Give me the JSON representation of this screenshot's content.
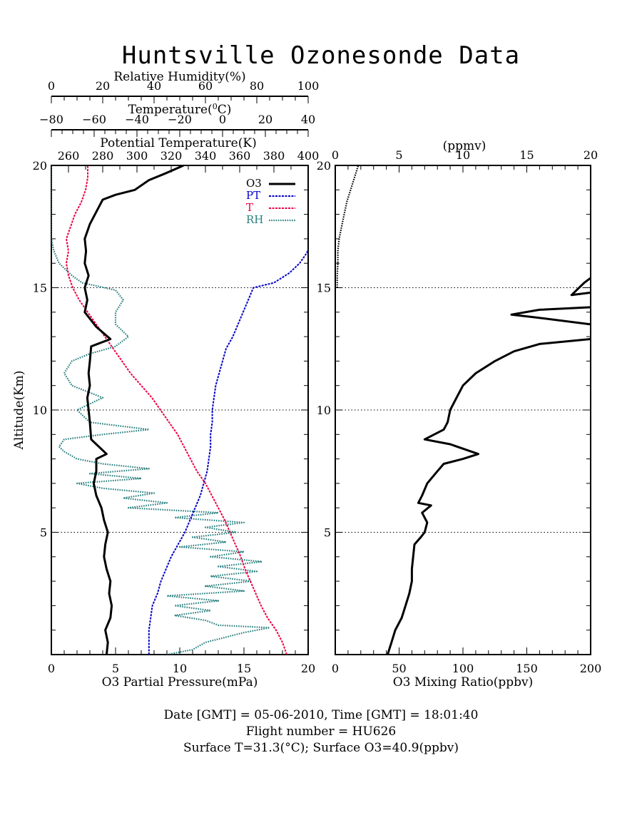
{
  "page": {
    "title": "Huntsville Ozonesonde Data",
    "footer_lines": [
      "Date [GMT] = 05-06-2010,  Time [GMT] = 18:01:40",
      "Flight number = HU626",
      "Surface T=31.3(°C); Surface O3=40.9(ppbv)"
    ]
  },
  "colors": {
    "O3": "#000000",
    "PT": "#0000cc",
    "T": "#ee0044",
    "RH": "#2a7f7f",
    "axis": "#000000"
  },
  "chart_data": [
    {
      "type": "line",
      "panel": "left",
      "ylabel": "Altitude(Km)",
      "ylim": [
        0,
        20
      ],
      "yticks": [
        5,
        10,
        15,
        20
      ],
      "grid_lines_y": [
        5,
        10,
        15
      ],
      "legend_position": "top-right",
      "legend": [
        "O3",
        "PT",
        "T",
        "RH"
      ],
      "axes": {
        "o3": {
          "label": "O3 Partial Pressure(mPa)",
          "lim": [
            0,
            20
          ],
          "ticks": [
            "0",
            "5",
            "10",
            "15",
            "20"
          ]
        },
        "rh": {
          "label": "Relative Humidity(%)",
          "lim": [
            0,
            100
          ],
          "ticks": [
            "0",
            "20",
            "40",
            "60",
            "80",
            "100"
          ]
        },
        "temperature": {
          "label": "Temperature(°C)",
          "label_text": "Temperature(",
          "label_sup": "0",
          "label_tail": "C)",
          "lim": [
            -80,
            40
          ],
          "ticks": [
            "-80",
            "-60",
            "-40",
            "-20",
            "0",
            "20",
            "40"
          ]
        },
        "pt": {
          "label": "Potential Temperature(K)",
          "lim": [
            250,
            400
          ],
          "ticks": [
            "260",
            "280",
            "300",
            "320",
            "340",
            "360",
            "380",
            "400"
          ]
        }
      },
      "series": [
        {
          "name": "O3",
          "style": "solid",
          "points": [
            [
              4.3,
              0
            ],
            [
              4.4,
              0.5
            ],
            [
              4.2,
              1
            ],
            [
              4.6,
              1.5
            ],
            [
              4.7,
              2
            ],
            [
              4.5,
              2.5
            ],
            [
              4.6,
              3
            ],
            [
              4.3,
              3.5
            ],
            [
              4.1,
              4
            ],
            [
              4.2,
              4.5
            ],
            [
              4.4,
              5
            ],
            [
              4.1,
              5.5
            ],
            [
              3.9,
              6
            ],
            [
              3.5,
              6.5
            ],
            [
              3.3,
              7
            ],
            [
              3.5,
              7.5
            ],
            [
              3.5,
              8
            ],
            [
              4.3,
              8.2
            ],
            [
              3.1,
              8.8
            ],
            [
              3.0,
              9.5
            ],
            [
              2.9,
              10
            ],
            [
              2.8,
              10.5
            ],
            [
              3.0,
              11
            ],
            [
              2.9,
              11.5
            ],
            [
              3.0,
              12
            ],
            [
              3.1,
              12.6
            ],
            [
              4.6,
              12.9
            ],
            [
              3.5,
              13.4
            ],
            [
              2.6,
              14.0
            ],
            [
              2.8,
              14.5
            ],
            [
              2.6,
              15
            ],
            [
              2.9,
              15.5
            ],
            [
              2.6,
              16
            ],
            [
              2.7,
              16.5
            ],
            [
              2.6,
              17
            ],
            [
              3.0,
              17.6
            ],
            [
              3.6,
              18.2
            ],
            [
              4.0,
              18.6
            ],
            [
              5.0,
              18.8
            ],
            [
              6.5,
              19.0
            ],
            [
              7.6,
              19.4
            ],
            [
              9.0,
              19.7
            ],
            [
              10.3,
              20.0
            ]
          ]
        },
        {
          "name": "PT",
          "style": "dashdot",
          "points": [
            [
              307,
              0
            ],
            [
              307,
              0.5
            ],
            [
              307,
              1
            ],
            [
              308,
              1.5
            ],
            [
              309,
              2
            ],
            [
              312,
              2.5
            ],
            [
              314,
              3
            ],
            [
              317,
              3.5
            ],
            [
              320,
              4
            ],
            [
              324,
              4.5
            ],
            [
              328,
              5
            ],
            [
              331,
              5.5
            ],
            [
              334,
              6
            ],
            [
              337,
              6.5
            ],
            [
              339,
              7
            ],
            [
              341,
              7.5
            ],
            [
              342,
              8
            ],
            [
              343,
              8.5
            ],
            [
              343,
              9
            ],
            [
              344,
              9.5
            ],
            [
              344,
              10
            ],
            [
              345,
              10.5
            ],
            [
              346,
              11
            ],
            [
              348,
              11.5
            ],
            [
              350,
              12
            ],
            [
              352,
              12.5
            ],
            [
              356,
              13
            ],
            [
              359,
              13.5
            ],
            [
              362,
              14
            ],
            [
              365,
              14.5
            ],
            [
              368,
              15
            ],
            [
              380,
              15.2
            ],
            [
              389,
              15.6
            ],
            [
              395,
              16
            ],
            [
              399,
              16.4
            ],
            [
              401,
              16.7
            ]
          ]
        },
        {
          "name": "T",
          "style": "dashdot",
          "points": [
            [
              30.0,
              0
            ],
            [
              28.0,
              0.5
            ],
            [
              25.0,
              1
            ],
            [
              21.0,
              1.5
            ],
            [
              18.0,
              2
            ],
            [
              15.5,
              2.5
            ],
            [
              13.0,
              3
            ],
            [
              10.5,
              3.5
            ],
            [
              8.5,
              4
            ],
            [
              6.0,
              4.5
            ],
            [
              3.5,
              5
            ],
            [
              1.0,
              5.5
            ],
            [
              -2.0,
              6
            ],
            [
              -5.0,
              6.5
            ],
            [
              -8.0,
              7
            ],
            [
              -12.0,
              7.5
            ],
            [
              -15.0,
              8
            ],
            [
              -18.0,
              8.5
            ],
            [
              -21.0,
              9
            ],
            [
              -25.0,
              9.5
            ],
            [
              -29.0,
              10
            ],
            [
              -33.0,
              10.5
            ],
            [
              -38.0,
              11
            ],
            [
              -43.0,
              11.5
            ],
            [
              -47.0,
              12
            ],
            [
              -51.0,
              12.5
            ],
            [
              -55.0,
              13
            ],
            [
              -59.0,
              13.5
            ],
            [
              -63.0,
              14
            ],
            [
              -67.0,
              14.5
            ],
            [
              -70.0,
              15
            ],
            [
              -72.0,
              15.5
            ],
            [
              -73.0,
              16
            ],
            [
              -72.0,
              16.5
            ],
            [
              -73.0,
              17
            ],
            [
              -71.0,
              17.5
            ],
            [
              -69.0,
              18
            ],
            [
              -66.0,
              18.5
            ],
            [
              -64.0,
              19
            ],
            [
              -63.0,
              19.5
            ],
            [
              -63.0,
              20
            ]
          ]
        },
        {
          "name": "RH",
          "style": "dotted",
          "points": [
            [
              45,
              0
            ],
            [
              55,
              0.2
            ],
            [
              60,
              0.5
            ],
            [
              75,
              0.9
            ],
            [
              85,
              1.1
            ],
            [
              65,
              1.2
            ],
            [
              60,
              1.4
            ],
            [
              48,
              1.6
            ],
            [
              62,
              1.8
            ],
            [
              48,
              2.0
            ],
            [
              65,
              2.2
            ],
            [
              45,
              2.4
            ],
            [
              75,
              2.6
            ],
            [
              60,
              2.8
            ],
            [
              78,
              3.0
            ],
            [
              62,
              3.2
            ],
            [
              80,
              3.4
            ],
            [
              65,
              3.6
            ],
            [
              82,
              3.8
            ],
            [
              62,
              4.0
            ],
            [
              75,
              4.2
            ],
            [
              50,
              4.4
            ],
            [
              68,
              4.6
            ],
            [
              55,
              4.8
            ],
            [
              72,
              5.0
            ],
            [
              60,
              5.2
            ],
            [
              75,
              5.4
            ],
            [
              48,
              5.6
            ],
            [
              65,
              5.8
            ],
            [
              30,
              6.0
            ],
            [
              45,
              6.2
            ],
            [
              28,
              6.4
            ],
            [
              40,
              6.6
            ],
            [
              20,
              6.8
            ],
            [
              10,
              7.0
            ],
            [
              35,
              7.2
            ],
            [
              15,
              7.4
            ],
            [
              38,
              7.6
            ],
            [
              20,
              7.8
            ],
            [
              10,
              8.0
            ],
            [
              5,
              8.3
            ],
            [
              3,
              8.5
            ],
            [
              5,
              8.8
            ],
            [
              20,
              9.0
            ],
            [
              38,
              9.2
            ],
            [
              15,
              9.5
            ],
            [
              10,
              10.0
            ],
            [
              20,
              10.5
            ],
            [
              8,
              11.0
            ],
            [
              5,
              11.5
            ],
            [
              8,
              12.0
            ],
            [
              15,
              12.3
            ],
            [
              25,
              12.6
            ],
            [
              30,
              13.0
            ],
            [
              25,
              13.5
            ],
            [
              25,
              14.0
            ],
            [
              28,
              14.5
            ],
            [
              25,
              14.9
            ],
            [
              12,
              15.2
            ],
            [
              8,
              15.5
            ],
            [
              3,
              16.0
            ],
            [
              1,
              16.5
            ],
            [
              0,
              17.0
            ],
            [
              0,
              18.0
            ],
            [
              0,
              19.0
            ],
            [
              0,
              20
            ]
          ]
        }
      ]
    },
    {
      "type": "line",
      "panel": "right",
      "xlabel": "O3 Mixing Ratio(ppbv)",
      "xlim": [
        0,
        200
      ],
      "xticks": [
        "0",
        "50",
        "100",
        "150",
        "200"
      ],
      "top_axis": {
        "label": "(ppmv)",
        "lim": [
          0,
          20
        ],
        "ticks": [
          "0",
          "5",
          "10",
          "15",
          "20"
        ]
      },
      "ylim": [
        0,
        20
      ],
      "yticks": [
        5,
        10,
        15,
        20
      ],
      "grid_lines_y": [
        5,
        10,
        15
      ],
      "series": [
        {
          "style": "solid",
          "axis": "bottom",
          "points": [
            [
              41,
              0
            ],
            [
              44,
              0.5
            ],
            [
              47,
              1
            ],
            [
              52,
              1.5
            ],
            [
              55,
              2
            ],
            [
              58,
              2.5
            ],
            [
              60,
              3
            ],
            [
              60,
              3.5
            ],
            [
              61,
              4
            ],
            [
              62,
              4.5
            ],
            [
              67,
              4.8
            ],
            [
              70,
              5
            ],
            [
              72,
              5.4
            ],
            [
              68,
              5.8
            ],
            [
              75,
              6.1
            ],
            [
              65,
              6.2
            ],
            [
              68,
              6.5
            ],
            [
              72,
              7
            ],
            [
              80,
              7.5
            ],
            [
              85,
              7.8
            ],
            [
              100,
              8.0
            ],
            [
              112,
              8.2
            ],
            [
              90,
              8.6
            ],
            [
              70,
              8.8
            ],
            [
              85,
              9.2
            ],
            [
              88,
              9.5
            ],
            [
              90,
              10
            ],
            [
              95,
              10.5
            ],
            [
              100,
              11.0
            ],
            [
              110,
              11.5
            ],
            [
              125,
              12.0
            ],
            [
              140,
              12.4
            ],
            [
              160,
              12.7
            ],
            [
              200,
              12.9
            ]
          ]
        },
        {
          "style": "solid",
          "axis": "bottom",
          "points": [
            [
              200,
              13.5
            ],
            [
              155,
              13.8
            ],
            [
              138,
              13.9
            ],
            [
              160,
              14.1
            ],
            [
              200,
              14.2
            ]
          ]
        },
        {
          "style": "solid",
          "axis": "bottom",
          "points": [
            [
              200,
              14.8
            ],
            [
              185,
              14.7
            ],
            [
              195,
              15.2
            ],
            [
              200,
              15.4
            ]
          ]
        },
        {
          "style": "dotted",
          "axis": "top",
          "points": [
            [
              0.15,
              15
            ],
            [
              0.15,
              15.5
            ],
            [
              0.2,
              16
            ],
            [
              0.2,
              16.5
            ],
            [
              0.3,
              17
            ],
            [
              0.5,
              17.5
            ],
            [
              0.7,
              18
            ],
            [
              0.9,
              18.5
            ],
            [
              1.2,
              19
            ],
            [
              1.5,
              19.5
            ],
            [
              1.8,
              20
            ]
          ]
        }
      ]
    }
  ]
}
